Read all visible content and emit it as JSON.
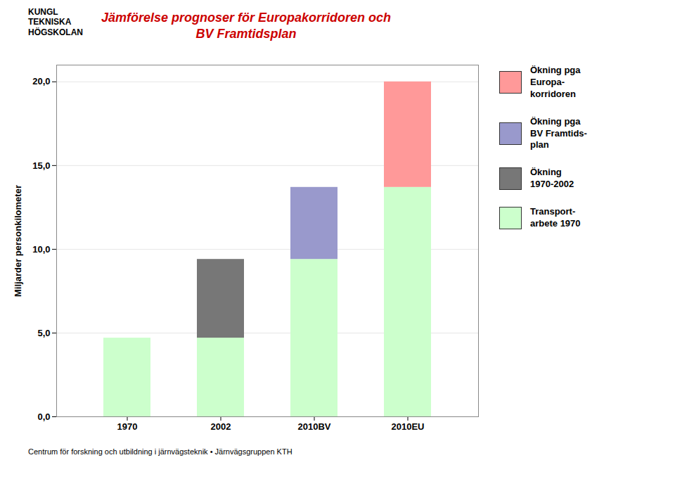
{
  "chart_data": {
    "type": "bar",
    "stacked": true,
    "title": "Jämförelse prognoser för Europakorridoren och\nBV Framtidsplan",
    "title_color": "#cc0000",
    "ylabel": "Miljarder personkilometer",
    "caption": "Centrum för forskning och utbildning i järnvägsteknik • Järnvägsgruppen  KTH",
    "annotations": [
      "KUNGL\nTEKNISKA\nHÖGSKOLAN"
    ],
    "categories": [
      "1970",
      "2002",
      "2010BV",
      "2010EU"
    ],
    "series": [
      {
        "name": "Transport-\narbete 1970",
        "color": "#ccffcc",
        "values": [
          4.7,
          4.7,
          9.4,
          13.7
        ]
      },
      {
        "name": "Ökning\n1970-2002",
        "color": "#777777",
        "values": [
          0,
          4.7,
          0,
          0
        ]
      },
      {
        "name": "Ökning pga\nBV Framtids-\nplan",
        "color": "#9999cc",
        "values": [
          0,
          0,
          4.3,
          0
        ]
      },
      {
        "name": "Ökning pga\nEuropa-\nkorridoren",
        "color": "#ff9999",
        "values": [
          0,
          0,
          0,
          6.3
        ]
      }
    ],
    "ylim": [
      0,
      21
    ],
    "yticks": [
      {
        "value": 0.0,
        "label": "0,0"
      },
      {
        "value": 5.0,
        "label": "5,0"
      },
      {
        "value": 10.0,
        "label": "10,0"
      },
      {
        "value": 15.0,
        "label": "15,0"
      },
      {
        "value": 20.0,
        "label": "20,0"
      }
    ],
    "grid": true,
    "legend": "right"
  }
}
